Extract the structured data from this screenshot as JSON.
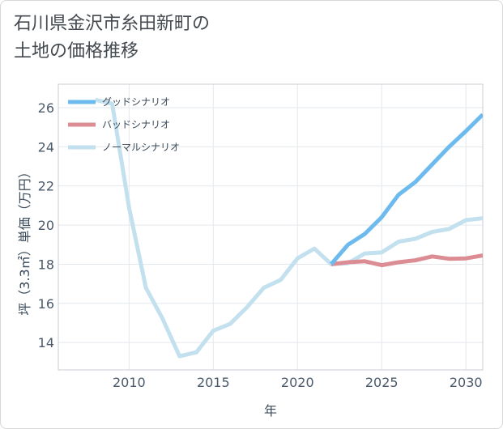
{
  "title_line1": "石川県金沢市糸田新町の",
  "title_line2": "土地の価格推移",
  "colors": {
    "good": "#6dbbee",
    "bad": "#dc8c93",
    "normal": "#c3e0ef"
  },
  "chart_data": {
    "type": "line",
    "xlabel": "年",
    "ylabel": "坪（3.3㎡）単価（万円）",
    "xlim": [
      2005.8,
      2031
    ],
    "ylim": [
      12.6,
      27.2
    ],
    "xticks": [
      2010,
      2015,
      2020,
      2025,
      2030
    ],
    "yticks": [
      14,
      16,
      18,
      20,
      22,
      24,
      26
    ],
    "grid": true,
    "legend_position": "top-left",
    "series": [
      {
        "name": "グッドシナリオ",
        "color": "#6dbbee",
        "x": [
          2022,
          2023,
          2024,
          2025,
          2026,
          2027,
          2028,
          2029,
          2030,
          2031
        ],
        "y": [
          18.0,
          19.0,
          19.55,
          20.4,
          21.55,
          22.2,
          23.1,
          24.0,
          24.8,
          25.65
        ]
      },
      {
        "name": "バッドシナリオ",
        "color": "#dc8c93",
        "x": [
          2022,
          2023,
          2024,
          2025,
          2026,
          2027,
          2028,
          2029,
          2030,
          2031
        ],
        "y": [
          18.0,
          18.1,
          18.15,
          17.95,
          18.1,
          18.2,
          18.4,
          18.28,
          18.3,
          18.45
        ]
      },
      {
        "name": "ノーマルシナリオ",
        "color": "#c3e0ef",
        "x": [
          2008,
          2009,
          2010,
          2011,
          2012,
          2013,
          2014,
          2015,
          2016,
          2017,
          2018,
          2019,
          2020,
          2021,
          2022,
          2023,
          2024,
          2025,
          2026,
          2027,
          2028,
          2029,
          2030,
          2031
        ],
        "y": [
          26.4,
          26.2,
          20.9,
          16.8,
          15.2,
          13.3,
          13.5,
          14.6,
          14.95,
          15.8,
          16.8,
          17.2,
          18.3,
          18.8,
          18.0,
          18.05,
          18.55,
          18.6,
          19.15,
          19.3,
          19.65,
          19.8,
          20.25,
          20.35
        ]
      }
    ]
  }
}
